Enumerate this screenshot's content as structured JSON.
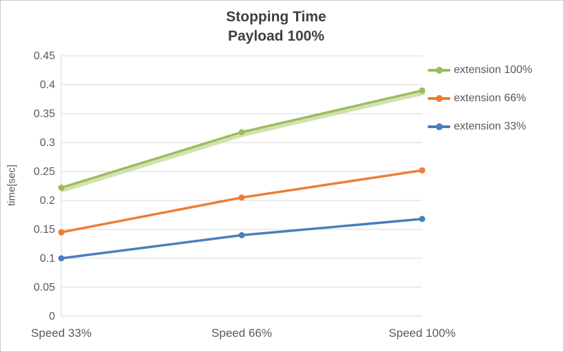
{
  "chart_data": {
    "type": "line",
    "title": "Stopping Time",
    "subtitle": "Payload 100%",
    "categories": [
      "Speed 33%",
      "Speed 66%",
      "Speed 100%"
    ],
    "series": [
      {
        "name": "extension 100%",
        "color": "#9CBB5C",
        "shadow_color": "#CDDFA5",
        "values": [
          0.222,
          0.318,
          0.39
        ]
      },
      {
        "name": "extension 66%",
        "color": "#ED7D31",
        "values": [
          0.145,
          0.205,
          0.252
        ]
      },
      {
        "name": "extension 33%",
        "color": "#4A7EBD",
        "values": [
          0.1,
          0.14,
          0.168
        ]
      }
    ],
    "ylabel": "time[sec]",
    "ylim": [
      0,
      0.45
    ],
    "ytick_step": 0.05,
    "yticks": [
      "0",
      "0.05",
      "0.1",
      "0.15",
      "0.2",
      "0.25",
      "0.3",
      "0.35",
      "0.4",
      "0.45"
    ],
    "grid": true,
    "legend_position": "right",
    "grid_color": "#d9d9d9",
    "axis_text_color": "#595959",
    "title_color": "#3f3f3f"
  }
}
